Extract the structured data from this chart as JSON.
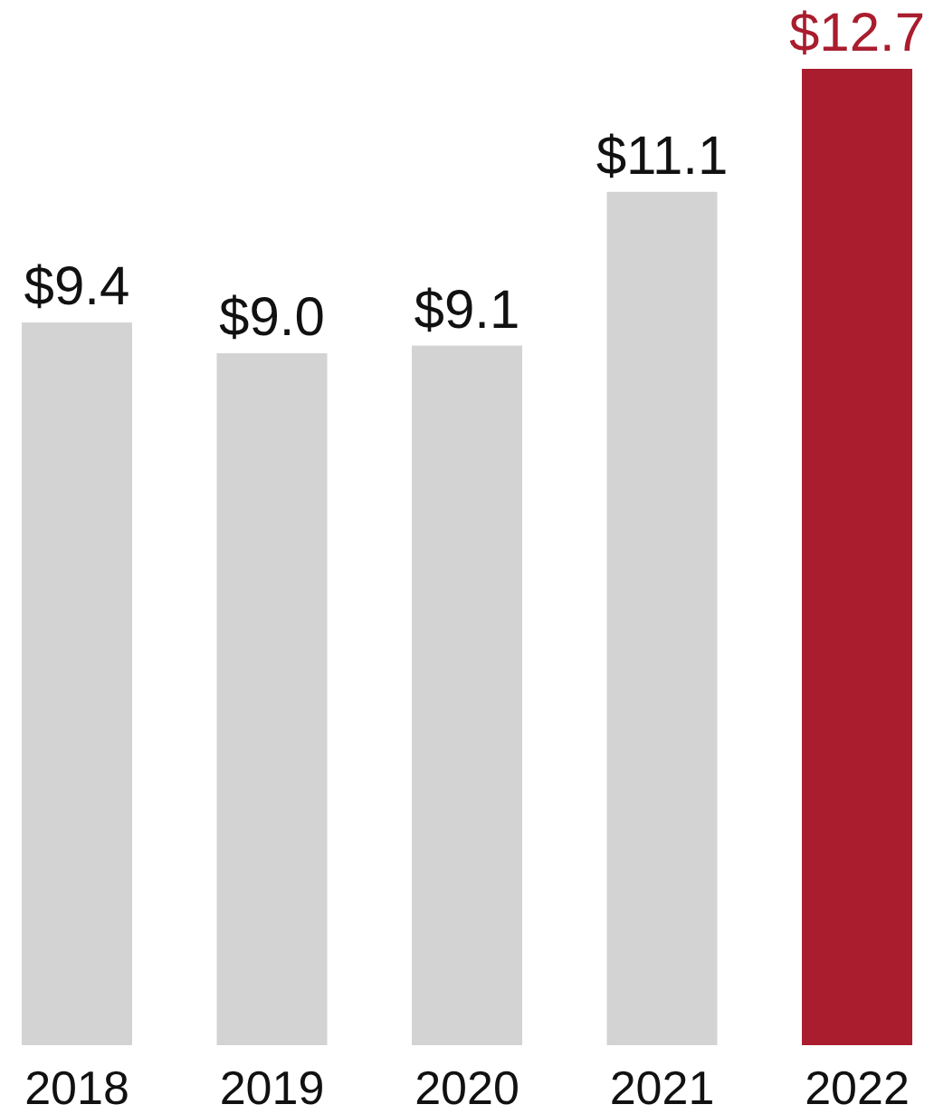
{
  "chart_data": {
    "type": "bar",
    "categories": [
      "2018",
      "2019",
      "2020",
      "2021",
      "2022"
    ],
    "values": [
      9.4,
      9.0,
      9.1,
      11.1,
      12.7
    ],
    "value_labels": [
      "$9.4",
      "$9.0",
      "$9.1",
      "$11.1",
      "$12.7"
    ],
    "colors": [
      "#d3d3d3",
      "#d3d3d3",
      "#d3d3d3",
      "#d3d3d3",
      "#a91d2e"
    ]
  }
}
